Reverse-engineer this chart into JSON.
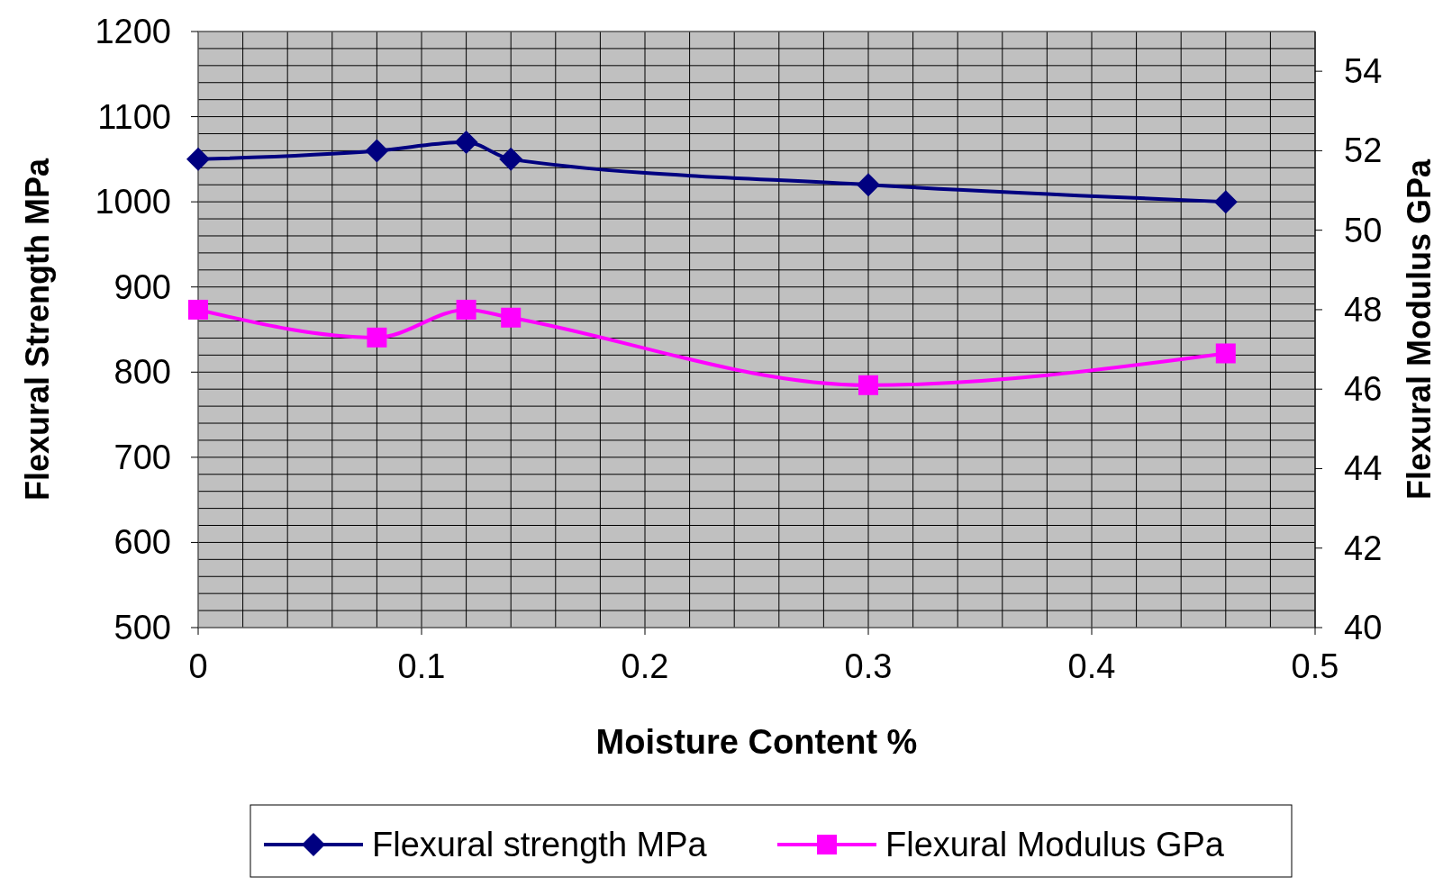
{
  "chart_data": {
    "type": "line",
    "xlabel": "Moisture Content %",
    "ylabel": "Flexural Strength MPa",
    "y2label": "Flexural Modulus GPa",
    "x": [
      0,
      0.08,
      0.12,
      0.14,
      0.3,
      0.46
    ],
    "series": [
      {
        "name": "Flexural strength MPa",
        "color": "#000080",
        "marker": "diamond",
        "values": [
          1050,
          1060,
          1070,
          1050,
          1020,
          1000
        ]
      },
      {
        "name": "Flexural Modulus GPa",
        "color": "#ff00ff",
        "marker": "square",
        "axis": "y2",
        "values": [
          48.0,
          47.3,
          48.0,
          47.8,
          46.1,
          46.9
        ]
      }
    ],
    "xlim": [
      0,
      0.5
    ],
    "xticks": [
      0,
      {
        "value": 0.02,
        "label": null
      },
      {
        "value": 0.04,
        "label": null
      },
      {
        "value": 0.06,
        "label": null
      },
      {
        "value": 0.08,
        "label": null
      },
      0.1,
      {
        "value": 0.12,
        "label": null
      },
      {
        "value": 0.14,
        "label": null
      },
      {
        "value": 0.16,
        "label": null
      },
      {
        "value": 0.18,
        "label": null
      },
      0.2,
      {
        "value": 0.22,
        "label": null
      },
      {
        "value": 0.24,
        "label": null
      },
      {
        "value": 0.26,
        "label": null
      },
      {
        "value": 0.28,
        "label": null
      },
      0.3,
      {
        "value": 0.32,
        "label": null
      },
      {
        "value": 0.34,
        "label": null
      },
      {
        "value": 0.36,
        "label": null
      },
      {
        "value": 0.38,
        "label": null
      },
      0.4,
      {
        "value": 0.42,
        "label": null
      },
      {
        "value": 0.44,
        "label": null
      },
      {
        "value": 0.46,
        "label": null
      },
      {
        "value": 0.48,
        "label": null
      },
      0.5
    ],
    "ylim": [
      500,
      1200
    ],
    "yticks": [
      500,
      {
        "value": 520,
        "label": null
      },
      {
        "value": 540,
        "label": null
      },
      {
        "value": 560,
        "label": null
      },
      {
        "value": 580,
        "label": null
      },
      600,
      {
        "value": 620,
        "label": null
      },
      {
        "value": 640,
        "label": null
      },
      {
        "value": 660,
        "label": null
      },
      {
        "value": 680,
        "label": null
      },
      700,
      {
        "value": 720,
        "label": null
      },
      {
        "value": 740,
        "label": null
      },
      {
        "value": 760,
        "label": null
      },
      {
        "value": 780,
        "label": null
      },
      800,
      {
        "value": 820,
        "label": null
      },
      {
        "value": 840,
        "label": null
      },
      {
        "value": 860,
        "label": null
      },
      {
        "value": 880,
        "label": null
      },
      900,
      {
        "value": 920,
        "label": null
      },
      {
        "value": 940,
        "label": null
      },
      {
        "value": 960,
        "label": null
      },
      {
        "value": 980,
        "label": null
      },
      1000,
      {
        "value": 1020,
        "label": null
      },
      {
        "value": 1040,
        "label": null
      },
      {
        "value": 1060,
        "label": null
      },
      {
        "value": 1080,
        "label": null
      },
      1100,
      {
        "value": 1120,
        "label": null
      },
      {
        "value": 1140,
        "label": null
      },
      {
        "value": 1160,
        "label": null
      },
      {
        "value": 1180,
        "label": null
      },
      1200
    ],
    "y2lim": [
      40,
      55
    ],
    "y2ticks": [
      40,
      42,
      44,
      46,
      48,
      50,
      52,
      54
    ],
    "grid": true,
    "legend": "bottom",
    "line_style": "solid"
  }
}
